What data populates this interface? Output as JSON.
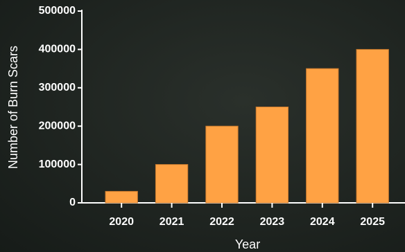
{
  "chart_data": {
    "type": "bar",
    "x_label": "Year",
    "y_label": "Number of Burn Scars",
    "categories": [
      "2020",
      "2021",
      "2022",
      "2023",
      "2024",
      "2025"
    ],
    "values": [
      30000,
      100000,
      200000,
      250000,
      350000,
      400000
    ],
    "color": "#ffa244",
    "ylim": [
      0,
      500000
    ],
    "yticks": [
      0,
      100000,
      200000,
      300000,
      400000,
      500000
    ],
    "grid": false
  }
}
